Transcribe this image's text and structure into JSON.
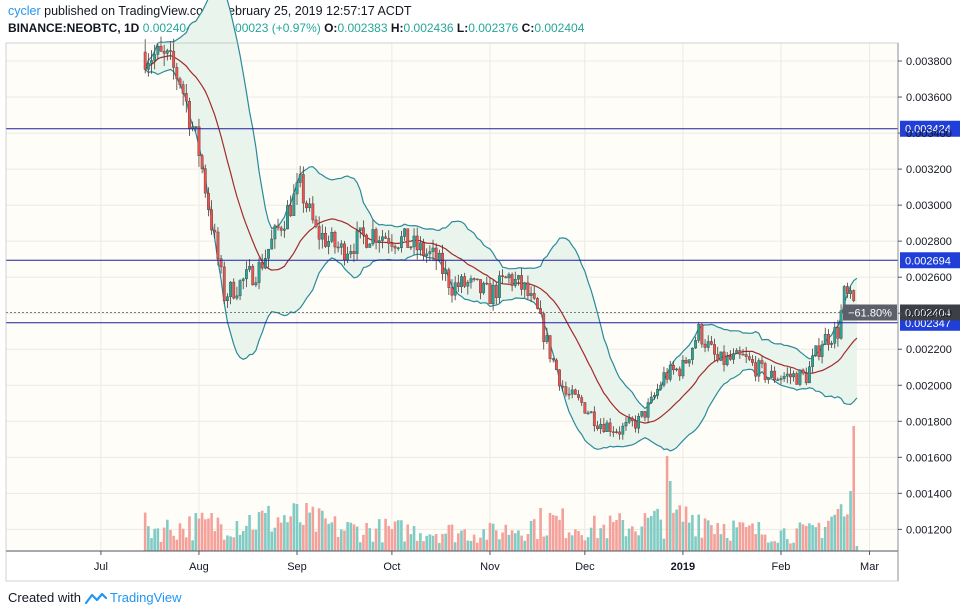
{
  "header": {
    "username": "cycler",
    "published_text": "published on TradingView.com, February 25, 2019 12:57:17 ACDT",
    "symbol": "BINANCE:NEOBTC, 1D",
    "last": "0.002404",
    "change": "+0.000023 (+0.97%)",
    "o_label": "O:",
    "o_value": "0.002383",
    "h_label": "H:",
    "h_value": "0.002436",
    "l_label": "L:",
    "l_value": "0.002376",
    "c_label": "C:",
    "c_value": "0.002404"
  },
  "footer": {
    "created_with": "Created with",
    "brand": "TradingView"
  },
  "colors": {
    "up": "#26a69a",
    "down": "#ef5350",
    "up_volume": "#80cbc4",
    "down_volume": "#f4a19b",
    "band_line": "#2a8a9a",
    "band_fill": "#e8f4ec",
    "basis": "#a52a2a",
    "hline": "#1e1ea0",
    "chart_bg": "#fffdf7",
    "axis_text": "#131722"
  },
  "chart_data": {
    "type": "candlestick",
    "symbol": "BINANCE:NEOBTC",
    "interval": "1D",
    "ylim": [
      0.00108,
      0.0039
    ],
    "y_ticks": [
      "0.001200",
      "0.001400",
      "0.001600",
      "0.001800",
      "0.002000",
      "0.002200",
      "0.002400",
      "0.002600",
      "0.002800",
      "0.003000",
      "0.003200",
      "0.003400",
      "0.003600",
      "0.003800"
    ],
    "x_ticks": [
      "Jul",
      "Aug",
      "Sep",
      "Oct",
      "Nov",
      "Dec",
      "2019",
      "Feb",
      "Mar"
    ],
    "x_tick_dates": [
      "2018-07-01",
      "2018-08-01",
      "2018-09-01",
      "2018-10-01",
      "2018-11-01",
      "2018-12-01",
      "2019-01-01",
      "2019-02-01",
      "2019-03-01"
    ],
    "date_range": [
      "2018-06-01",
      "2019-03-10"
    ],
    "price_anchors": [
      [
        "2018-07-15",
        0.00385
      ],
      [
        "2018-07-22",
        0.0038
      ],
      [
        "2018-07-26",
        0.0037
      ],
      [
        "2018-08-01",
        0.0033
      ],
      [
        "2018-08-05",
        0.0029
      ],
      [
        "2018-08-09",
        0.0025
      ],
      [
        "2018-08-13",
        0.00255
      ],
      [
        "2018-08-20",
        0.00265
      ],
      [
        "2018-08-27",
        0.0029
      ],
      [
        "2018-09-02",
        0.0031
      ],
      [
        "2018-09-07",
        0.00285
      ],
      [
        "2018-09-15",
        0.00275
      ],
      [
        "2018-09-25",
        0.00285
      ],
      [
        "2018-10-05",
        0.0028
      ],
      [
        "2018-10-15",
        0.0027
      ],
      [
        "2018-10-20",
        0.00255
      ],
      [
        "2018-10-25",
        0.00256
      ],
      [
        "2018-11-01",
        0.0025
      ],
      [
        "2018-11-07",
        0.0026
      ],
      [
        "2018-11-12",
        0.00253
      ],
      [
        "2018-11-16",
        0.0024
      ],
      [
        "2018-11-20",
        0.00218
      ],
      [
        "2018-11-25",
        0.00195
      ],
      [
        "2018-11-30",
        0.0019
      ],
      [
        "2018-12-05",
        0.0018
      ],
      [
        "2018-12-12",
        0.00175
      ],
      [
        "2018-12-18",
        0.0018
      ],
      [
        "2018-12-22",
        0.0019
      ],
      [
        "2018-12-26",
        0.00205
      ],
      [
        "2019-01-01",
        0.0021
      ],
      [
        "2019-01-06",
        0.0023
      ],
      [
        "2019-01-12",
        0.00213
      ],
      [
        "2019-01-20",
        0.00215
      ],
      [
        "2019-01-28",
        0.00205
      ],
      [
        "2019-02-03",
        0.00205
      ],
      [
        "2019-02-09",
        0.00205
      ],
      [
        "2019-02-14",
        0.00225
      ],
      [
        "2019-02-19",
        0.0023
      ],
      [
        "2019-02-21",
        0.0025
      ],
      [
        "2019-02-24",
        0.00245
      ],
      [
        "2019-02-25",
        0.002404
      ]
    ],
    "volume_anchors": [
      [
        "2018-06-01",
        10
      ],
      [
        "2018-07-01",
        30
      ],
      [
        "2018-07-20",
        22
      ],
      [
        "2018-08-15",
        30
      ],
      [
        "2018-09-01",
        33
      ],
      [
        "2018-09-15",
        22
      ],
      [
        "2018-10-10",
        20
      ],
      [
        "2018-11-01",
        18
      ],
      [
        "2018-11-20",
        30
      ],
      [
        "2018-12-05",
        22
      ],
      [
        "2018-12-25",
        30
      ],
      [
        "2019-01-05",
        35
      ],
      [
        "2019-01-20",
        20
      ],
      [
        "2019-02-10",
        18
      ],
      [
        "2019-02-20",
        40
      ],
      [
        "2019-02-25",
        12
      ]
    ],
    "volume_spikes": [
      [
        "2018-12-27",
        95
      ],
      [
        "2018-12-28",
        70
      ],
      [
        "2019-02-23",
        60
      ],
      [
        "2019-02-24",
        125
      ]
    ],
    "horizontal_lines": [
      {
        "label": "0.003424",
        "value": 0.003424
      },
      {
        "label": "0.002694",
        "value": 0.002694
      },
      {
        "label": "0.002347",
        "value": 0.002347
      }
    ],
    "last_price_label": "0.002404",
    "last_price_value": 0.002404,
    "fib_label": "−61.80%",
    "indicators": [
      "Bollinger Bands (20, 2)",
      "Volume"
    ],
    "grid": true
  }
}
